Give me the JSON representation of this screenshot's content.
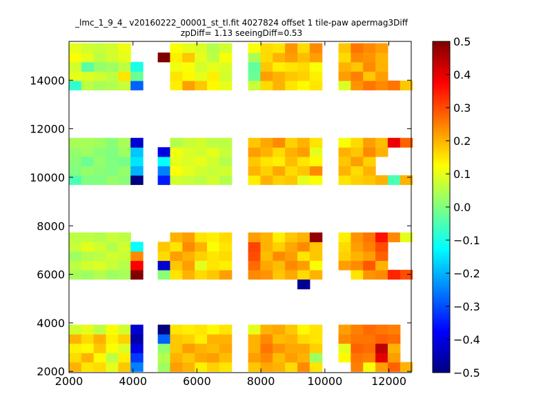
{
  "chart_data": {
    "type": "heatmap",
    "title": "_lmc_1_9_4_ v20160222_00001_st_tl.fit 4027824 offset 1 tile-paw apermag3Diff",
    "subtitle": "zpDiff= 1.13 seeingDiff=0.53",
    "xlabel": "",
    "ylabel": "",
    "xlim": [
      2000,
      12700
    ],
    "ylim": [
      1950,
      15600
    ],
    "xticks": [
      "2000",
      "4000",
      "6000",
      "8000",
      "10000",
      "12000"
    ],
    "yticks": [
      "2000",
      "4000",
      "6000",
      "8000",
      "10000",
      "12000",
      "14000"
    ],
    "cell_size": 385,
    "colorbar": {
      "vmin": -0.5,
      "vmax": 0.5,
      "colormap": "jet",
      "ticks": [
        "0.5",
        "0.4",
        "0.3",
        "0.2",
        "0.1",
        "0.0",
        "−0.1",
        "−0.2",
        "−0.3",
        "−0.4",
        "−0.5"
      ]
    },
    "grid": false,
    "columns_x": [
      2000,
      2385,
      2770,
      3155,
      3540,
      3925,
      4775,
      5160,
      5545,
      5930,
      6315,
      6700,
      7600,
      7985,
      8370,
      8755,
      9140,
      9525,
      10425,
      10810,
      11195,
      11580,
      11965,
      12350
    ],
    "band_rows": [
      {
        "y0": 2000,
        "rows": [
          [
            0.2,
            0.15,
            0.16,
            0.1,
            0.18,
            -0.25,
            0.03,
            0.22,
            0.2,
            0.14,
            0.17,
            0.15,
            0.18,
            0.21,
            0.2,
            0.16,
            0.24,
            0.15,
            null,
            0.25,
            0.12,
            0.22,
            0.28,
            0.2
          ],
          [
            0.16,
            0.2,
            0.13,
            0.06,
            0.14,
            -0.32,
            0.05,
            0.2,
            0.18,
            0.21,
            0.22,
            0.19,
            0.22,
            0.24,
            0.19,
            0.22,
            0.2,
            0.03,
            0.13,
            0.26,
            0.25,
            0.4,
            0.22,
            null
          ],
          [
            0.14,
            0.13,
            0.18,
            0.12,
            0.09,
            -0.4,
            0.02,
            0.18,
            0.22,
            0.2,
            0.19,
            0.21,
            0.2,
            0.26,
            0.23,
            0.21,
            0.21,
            0.17,
            0.1,
            0.28,
            0.27,
            0.44,
            0.2,
            null
          ],
          [
            0.2,
            0.16,
            0.2,
            0.14,
            0.17,
            -0.46,
            -0.28,
            0.18,
            0.17,
            0.14,
            0.2,
            0.2,
            0.2,
            0.24,
            0.19,
            0.2,
            0.16,
            0.15,
            0.24,
            0.26,
            0.26,
            0.28,
            0.27,
            null
          ],
          [
            0.08,
            0.1,
            0.06,
            0.12,
            0.08,
            -0.42,
            -0.5,
            0.15,
            0.14,
            0.15,
            0.13,
            0.15,
            0.1,
            0.2,
            0.21,
            0.18,
            0.13,
            0.15,
            0.22,
            0.25,
            0.27,
            0.26,
            0.25,
            null
          ]
        ]
      },
      {
        "y0": 5800,
        "rows": [
          [
            0.04,
            0.03,
            0.05,
            0.03,
            0.04,
            0.5,
            0.01,
            0.15,
            0.2,
            0.16,
            0.18,
            0.22,
            0.24,
            0.23,
            0.18,
            0.21,
            0.16,
            0.2,
            null,
            0.15,
            0.23,
            0.24,
            0.34,
            0.3
          ],
          [
            0.06,
            0.08,
            0.09,
            0.07,
            0.05,
            0.38,
            -0.42,
            0.18,
            0.22,
            0.1,
            0.15,
            0.14,
            0.27,
            0.21,
            0.19,
            0.24,
            0.22,
            0.12,
            0.22,
            0.24,
            0.29,
            0.2,
            null,
            null
          ],
          [
            0.03,
            0.05,
            0.06,
            0.08,
            0.07,
            0.24,
            0.16,
            0.22,
            0.2,
            0.17,
            0.15,
            0.16,
            0.3,
            0.19,
            0.24,
            0.22,
            0.15,
            0.18,
            0.17,
            0.2,
            0.22,
            0.28,
            null,
            null
          ],
          [
            0.07,
            0.1,
            0.08,
            0.05,
            0.08,
            -0.12,
            0.18,
            0.15,
            0.24,
            0.2,
            0.12,
            0.15,
            0.31,
            0.2,
            0.17,
            0.21,
            0.24,
            0.18,
            0.16,
            0.22,
            0.25,
            0.3,
            null,
            null
          ],
          [
            0.06,
            0.06,
            0.05,
            0.07,
            0.06,
            null,
            null,
            0.2,
            0.22,
            0.15,
            0.14,
            0.16,
            0.22,
            0.2,
            0.14,
            0.18,
            0.2,
            0.48,
            0.14,
            0.23,
            0.26,
            0.36,
            0.24,
            0.1
          ]
        ]
      },
      {
        "y0": 9700,
        "rows": [
          [
            -0.05,
            0.0,
            0.0,
            0.02,
            0.01,
            -0.5,
            -0.35,
            0.08,
            0.07,
            0.06,
            0.08,
            0.05,
            0.14,
            0.2,
            0.17,
            0.18,
            0.1,
            0.12,
            0.15,
            0.17,
            0.18,
            0.2,
            -0.05,
            0.2
          ],
          [
            0.0,
            0.02,
            0.01,
            0.0,
            0.02,
            -0.2,
            -0.25,
            0.12,
            0.1,
            0.08,
            0.07,
            0.08,
            0.2,
            0.17,
            0.21,
            0.16,
            0.18,
            0.24,
            0.2,
            0.16,
            0.2,
            null,
            null,
            null
          ],
          [
            0.01,
            -0.02,
            0.02,
            0.0,
            -0.01,
            -0.15,
            -0.12,
            0.1,
            0.09,
            0.1,
            0.08,
            0.05,
            0.18,
            0.15,
            0.14,
            0.19,
            0.15,
            0.13,
            0.18,
            0.22,
            0.17,
            null,
            null,
            null
          ],
          [
            0.02,
            0.03,
            0.01,
            0.0,
            0.03,
            -0.18,
            -0.4,
            0.11,
            0.09,
            0.08,
            0.1,
            0.07,
            0.22,
            0.2,
            0.16,
            0.2,
            0.22,
            0.1,
            0.2,
            0.18,
            0.24,
            0.2,
            null,
            null
          ],
          [
            0.04,
            0.04,
            0.03,
            0.01,
            0.04,
            -0.42,
            null,
            0.05,
            0.07,
            0.08,
            0.06,
            0.06,
            0.18,
            0.21,
            0.24,
            0.17,
            0.2,
            0.15,
            0.12,
            0.16,
            0.22,
            0.19,
            0.39,
            0.28
          ]
        ]
      },
      {
        "y0": 13600,
        "rows": [
          [
            -0.08,
            0.06,
            0.04,
            0.05,
            0.07,
            -0.28,
            null,
            0.14,
            0.22,
            0.18,
            0.13,
            0.1,
            0.07,
            0.16,
            0.2,
            0.15,
            0.13,
            0.15,
            0.09,
            0.23,
            0.26,
            0.24,
            0.26,
            0.18
          ],
          [
            0.1,
            0.09,
            0.08,
            0.06,
            0.15,
            -0.02,
            null,
            0.15,
            0.13,
            0.1,
            0.14,
            0.08,
            -0.02,
            0.22,
            0.2,
            0.18,
            0.17,
            0.14,
            0.22,
            0.25,
            0.18,
            0.22,
            null,
            null
          ],
          [
            0.08,
            -0.04,
            0.02,
            0.03,
            0.06,
            -0.1,
            null,
            0.11,
            0.12,
            0.08,
            0.1,
            0.09,
            -0.03,
            0.18,
            0.14,
            0.15,
            0.16,
            0.12,
            0.2,
            0.18,
            0.24,
            0.2,
            null,
            null
          ],
          [
            0.12,
            0.1,
            0.06,
            0.08,
            0.1,
            null,
            0.5,
            0.14,
            0.18,
            0.1,
            0.06,
            0.12,
            0.04,
            0.16,
            0.2,
            0.22,
            0.19,
            0.22,
            0.16,
            0.24,
            0.23,
            0.2,
            null,
            null
          ],
          [
            0.1,
            0.08,
            0.07,
            0.08,
            0.11,
            null,
            null,
            0.12,
            0.1,
            0.09,
            0.05,
            0.08,
            0.12,
            0.16,
            0.15,
            0.23,
            0.16,
            0.24,
            0.18,
            0.26,
            0.24,
            0.22,
            null,
            null
          ]
        ]
      }
    ],
    "extra_cells": [
      {
        "x": 9140,
        "y": 5400,
        "value": -0.48
      }
    ]
  }
}
